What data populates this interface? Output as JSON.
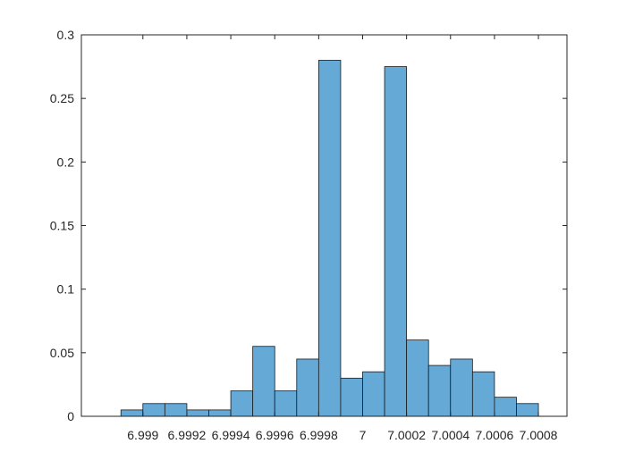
{
  "chart_data": {
    "type": "bar",
    "title": "",
    "xlabel": "",
    "ylabel": "",
    "bin_width": 0.0001,
    "bin_edges": [
      6.9989,
      6.999,
      6.9991,
      6.9992,
      6.9993,
      6.9994,
      6.9995,
      6.9996,
      6.9997,
      6.9998,
      6.9999,
      7.0,
      7.0001,
      7.0002,
      7.0003,
      7.0004,
      7.0005,
      7.0006,
      7.0007,
      7.0008
    ],
    "values": [
      0.005,
      0.01,
      0.01,
      0.005,
      0.005,
      0.02,
      0.055,
      0.02,
      0.045,
      0.28,
      0.03,
      0.035,
      0.275,
      0.06,
      0.04,
      0.045,
      0.035,
      0.015,
      0.01
    ],
    "xlim": [
      6.99872,
      7.00093
    ],
    "ylim": [
      0,
      0.3
    ],
    "xticks": [
      6.999,
      6.9992,
      6.9994,
      6.9996,
      6.9998,
      7.0,
      7.0002,
      7.0004,
      7.0006,
      7.0008
    ],
    "xtick_labels": [
      "6.999",
      "6.9992",
      "6.9994",
      "6.9996",
      "6.9998",
      "7",
      "7.0002",
      "7.0004",
      "7.0006",
      "7.0008"
    ],
    "yticks": [
      0,
      0.05,
      0.1,
      0.15,
      0.2,
      0.25,
      0.3
    ],
    "ytick_labels": [
      "0",
      "0.05",
      "0.1",
      "0.15",
      "0.2",
      "0.25",
      "0.3"
    ],
    "grid": false,
    "legend": "none",
    "bar_color": "#65A9D7",
    "bar_edge_color": "#1A1A1A",
    "axis_color": "#262626"
  }
}
